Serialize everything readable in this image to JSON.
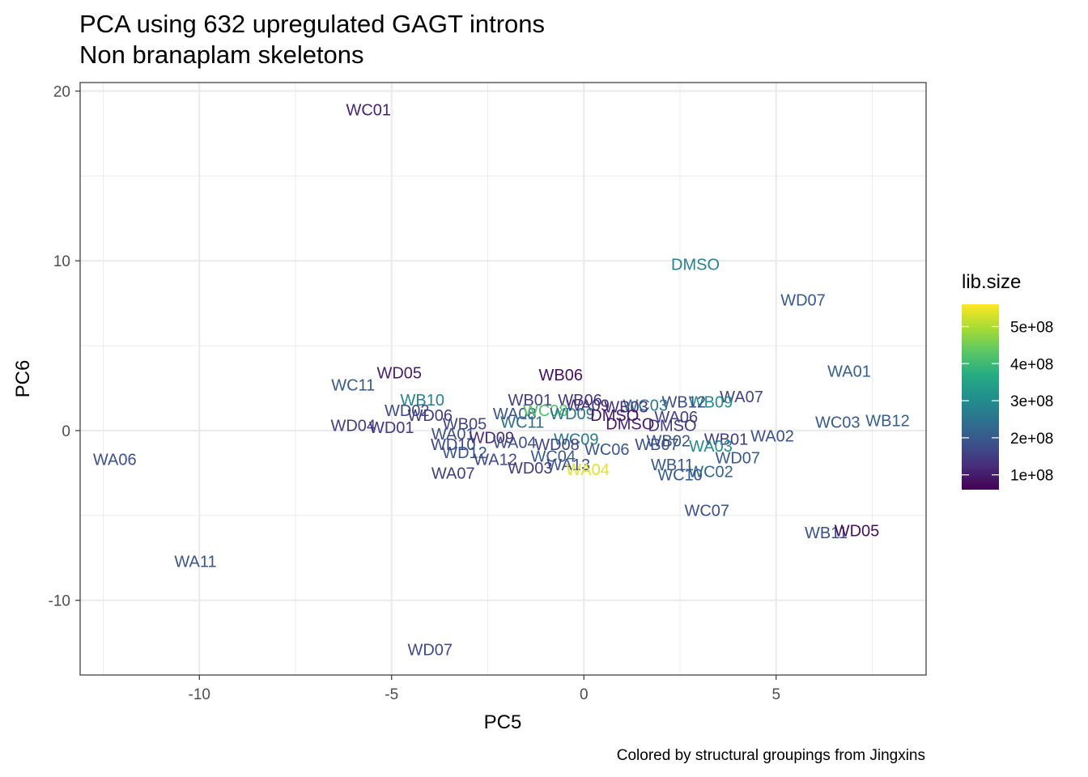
{
  "chart_data": {
    "type": "scatter",
    "title": [
      "PCA using 632 upregulated GAGT introns",
      "Non branaplam skeletons"
    ],
    "xlabel": "PC5",
    "ylabel": "PC6",
    "caption": "Colored by structural groupings from Jingxins",
    "xlim": [
      -13.1,
      8.9
    ],
    "ylim": [
      -14.4,
      20.5
    ],
    "x_ticks": [
      -10,
      -5,
      0,
      5
    ],
    "x_tick_labels": [
      "-10",
      "-5",
      "0",
      "5"
    ],
    "y_ticks": [
      -10,
      0,
      10,
      20
    ],
    "y_tick_labels": [
      "-10",
      "0",
      "10",
      "20"
    ],
    "grid": true,
    "color_scale": "viridis",
    "legend": {
      "title": "lib.size",
      "position": "right",
      "range": [
        60000000,
        560000000
      ],
      "breaks": [
        100000000,
        200000000,
        300000000,
        400000000,
        500000000
      ],
      "labels": [
        "1e+08",
        "2e+08",
        "3e+08",
        "4e+08",
        "5e+08"
      ]
    },
    "points": [
      {
        "label": "WC01",
        "x": -5.6,
        "y": 18.9,
        "lib_size": 110000000
      },
      {
        "label": "DMSO",
        "x": 2.9,
        "y": 9.8,
        "lib_size": 280000000
      },
      {
        "label": "WD07",
        "x": 5.7,
        "y": 7.7,
        "lib_size": 200000000
      },
      {
        "label": "WA01",
        "x": 6.9,
        "y": 3.5,
        "lib_size": 210000000
      },
      {
        "label": "WD05",
        "x": -4.8,
        "y": 3.4,
        "lib_size": 100000000
      },
      {
        "label": "WB06",
        "x": -0.6,
        "y": 3.3,
        "lib_size": 80000000
      },
      {
        "label": "WC11",
        "x": -6.0,
        "y": 2.7,
        "lib_size": 200000000
      },
      {
        "label": "WA07",
        "x": 4.1,
        "y": 2.0,
        "lib_size": 160000000
      },
      {
        "label": "WB10",
        "x": -4.2,
        "y": 1.8,
        "lib_size": 280000000
      },
      {
        "label": "WB01",
        "x": -1.4,
        "y": 1.8,
        "lib_size": 150000000
      },
      {
        "label": "WB06",
        "x": -0.1,
        "y": 1.8,
        "lib_size": 140000000
      },
      {
        "label": "WB09",
        "x": 3.3,
        "y": 1.7,
        "lib_size": 300000000
      },
      {
        "label": "WB12",
        "x": 2.6,
        "y": 1.7,
        "lib_size": 180000000
      },
      {
        "label": "WD02",
        "x": -4.6,
        "y": 1.2,
        "lib_size": 170000000
      },
      {
        "label": "WC03",
        "x": 1.6,
        "y": 1.5,
        "lib_size": 260000000
      },
      {
        "label": "WB03",
        "x": 1.1,
        "y": 1.4,
        "lib_size": 130000000
      },
      {
        "label": "WA09",
        "x": 0.1,
        "y": 1.5,
        "lib_size": 120000000
      },
      {
        "label": "WD06",
        "x": -4.0,
        "y": 0.9,
        "lib_size": 150000000
      },
      {
        "label": "WA08",
        "x": -1.8,
        "y": 1.0,
        "lib_size": 190000000
      },
      {
        "label": "WC08",
        "x": -1.0,
        "y": 1.2,
        "lib_size": 420000000
      },
      {
        "label": "WD09",
        "x": -0.3,
        "y": 1.0,
        "lib_size": 250000000
      },
      {
        "label": "DMSO",
        "x": 0.8,
        "y": 0.9,
        "lib_size": 90000000
      },
      {
        "label": "WA06",
        "x": 2.4,
        "y": 0.8,
        "lib_size": 160000000
      },
      {
        "label": "DMSO",
        "x": 2.3,
        "y": 0.3,
        "lib_size": 140000000
      },
      {
        "label": "DMSO",
        "x": 1.2,
        "y": 0.4,
        "lib_size": 100000000
      },
      {
        "label": "WB12",
        "x": 7.9,
        "y": 0.6,
        "lib_size": 210000000
      },
      {
        "label": "WC03",
        "x": 6.6,
        "y": 0.5,
        "lib_size": 200000000
      },
      {
        "label": "WD04",
        "x": -6.0,
        "y": 0.3,
        "lib_size": 150000000
      },
      {
        "label": "WD01",
        "x": -5.0,
        "y": 0.2,
        "lib_size": 140000000
      },
      {
        "label": "WB05",
        "x": -3.1,
        "y": 0.4,
        "lib_size": 160000000
      },
      {
        "label": "WC11",
        "x": -1.6,
        "y": 0.5,
        "lib_size": 240000000
      },
      {
        "label": "WA01",
        "x": -3.4,
        "y": -0.2,
        "lib_size": 180000000
      },
      {
        "label": "WD09",
        "x": -2.4,
        "y": -0.4,
        "lib_size": 120000000
      },
      {
        "label": "WA02",
        "x": 4.9,
        "y": -0.3,
        "lib_size": 180000000
      },
      {
        "label": "WB01",
        "x": 3.7,
        "y": -0.5,
        "lib_size": 150000000
      },
      {
        "label": "WB02",
        "x": 2.2,
        "y": -0.6,
        "lib_size": 190000000
      },
      {
        "label": "WA03",
        "x": 3.3,
        "y": -0.9,
        "lib_size": 300000000
      },
      {
        "label": "WB07",
        "x": 1.9,
        "y": -0.8,
        "lib_size": 180000000
      },
      {
        "label": "WC09",
        "x": -0.2,
        "y": -0.5,
        "lib_size": 260000000
      },
      {
        "label": "WA04",
        "x": -1.8,
        "y": -0.7,
        "lib_size": 180000000
      },
      {
        "label": "WD10",
        "x": -3.4,
        "y": -0.8,
        "lib_size": 170000000
      },
      {
        "label": "WC06",
        "x": 0.6,
        "y": -1.1,
        "lib_size": 190000000
      },
      {
        "label": "WD08",
        "x": -0.7,
        "y": -0.8,
        "lib_size": 160000000
      },
      {
        "label": "WD12",
        "x": -3.1,
        "y": -1.3,
        "lib_size": 190000000
      },
      {
        "label": "WA12",
        "x": -2.3,
        "y": -1.7,
        "lib_size": 170000000
      },
      {
        "label": "WC04",
        "x": -0.8,
        "y": -1.5,
        "lib_size": 200000000
      },
      {
        "label": "WD07",
        "x": 4.0,
        "y": -1.6,
        "lib_size": 200000000
      },
      {
        "label": "WD03",
        "x": -1.4,
        "y": -2.2,
        "lib_size": 150000000
      },
      {
        "label": "WA13",
        "x": -0.4,
        "y": -2.0,
        "lib_size": 180000000
      },
      {
        "label": "WA04",
        "x": 0.1,
        "y": -2.3,
        "lib_size": 540000000
      },
      {
        "label": "WB11",
        "x": 2.3,
        "y": -2.0,
        "lib_size": 190000000
      },
      {
        "label": "WA07",
        "x": -3.4,
        "y": -2.5,
        "lib_size": 150000000
      },
      {
        "label": "WC10",
        "x": 2.5,
        "y": -2.6,
        "lib_size": 200000000
      },
      {
        "label": "WC02",
        "x": 3.3,
        "y": -2.4,
        "lib_size": 220000000
      },
      {
        "label": "WA06",
        "x": -12.2,
        "y": -1.7,
        "lib_size": 180000000
      },
      {
        "label": "WC07",
        "x": 3.2,
        "y": -4.7,
        "lib_size": 180000000
      },
      {
        "label": "WB11",
        "x": 6.3,
        "y": -6.0,
        "lib_size": 180000000
      },
      {
        "label": "WD05",
        "x": 7.1,
        "y": -5.9,
        "lib_size": 80000000
      },
      {
        "label": "WA11",
        "x": -10.1,
        "y": -7.7,
        "lib_size": 190000000
      },
      {
        "label": "WD07",
        "x": -4.0,
        "y": -12.9,
        "lib_size": 170000000
      }
    ]
  }
}
